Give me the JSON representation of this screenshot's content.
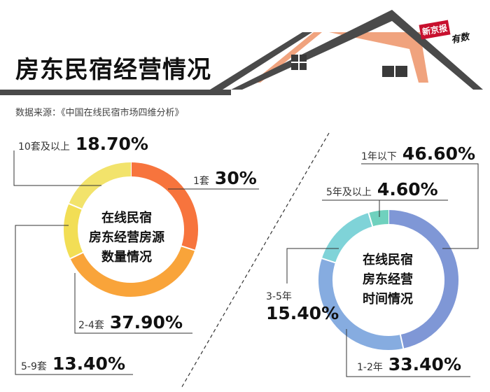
{
  "title": "房东民宿经营情况",
  "source": "数据来源：《中国在线民宿市场四维分析》",
  "brand": {
    "logo_text": "新京报",
    "sub_text": "有数"
  },
  "colors": {
    "roof": "#4a4a4a",
    "roof_accent": "#f0a37e",
    "window": "#3a3a3a",
    "leader_line": "#333333"
  },
  "chart_data": [
    {
      "type": "pie",
      "donut": true,
      "center_text": [
        "在线民宿",
        "房东经营房源",
        "数量情况"
      ],
      "categories": [
        "1套",
        "2-4套",
        "5-9套",
        "10套及以上"
      ],
      "values": [
        30,
        37.9,
        13.4,
        18.7
      ],
      "labels": [
        "30%",
        "37.90%",
        "13.40%",
        "18.70%"
      ],
      "colors": [
        "#f7743d",
        "#f9a43a",
        "#f2de55",
        "#f2e36b"
      ]
    },
    {
      "type": "pie",
      "donut": true,
      "center_text": [
        "在线民宿",
        "房东经营",
        "时间情况"
      ],
      "categories": [
        "1年以下",
        "1-2年",
        "3-5年",
        "5年及以上"
      ],
      "values": [
        46.6,
        33.4,
        15.4,
        4.6
      ],
      "labels": [
        "46.60%",
        "33.40%",
        "15.40%",
        "4.60%"
      ],
      "colors": [
        "#7f97d6",
        "#86ace0",
        "#7fd3d8",
        "#6fd1be"
      ]
    }
  ]
}
